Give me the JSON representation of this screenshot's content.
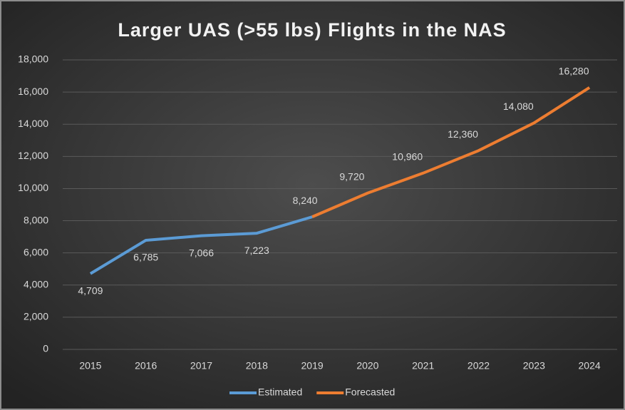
{
  "chart_data": {
    "type": "line",
    "title": "Larger UAS (>55 lbs) Flights in the NAS",
    "categories": [
      "2015",
      "2016",
      "2017",
      "2018",
      "2019",
      "2020",
      "2021",
      "2022",
      "2023",
      "2024"
    ],
    "series": [
      {
        "name": "Estimated",
        "color": "#5b9bd5",
        "values": [
          4709,
          6785,
          7066,
          7223,
          8240,
          null,
          null,
          null,
          null,
          null
        ],
        "value_labels": [
          "4,709",
          "6,785",
          "7,066",
          "7,223",
          "8,240",
          null,
          null,
          null,
          null,
          null
        ]
      },
      {
        "name": "Forecasted",
        "color": "#ed7d31",
        "values": [
          null,
          null,
          null,
          null,
          8240,
          9720,
          10960,
          12360,
          14080,
          16280
        ],
        "value_labels": [
          null,
          null,
          null,
          null,
          null,
          "9,720",
          "10,960",
          "12,360",
          "14,080",
          "16,280"
        ]
      }
    ],
    "ylim": [
      0,
      18000
    ],
    "yticks": [
      0,
      {
        "value": 2000,
        "label": "2,000"
      },
      {
        "value": 4000,
        "label": "4,000"
      },
      {
        "value": 6000,
        "label": "6,000"
      },
      {
        "value": 8000,
        "label": "8,000"
      },
      {
        "value": 10000,
        "label": "10,000"
      },
      {
        "value": 12000,
        "label": "12,000"
      },
      {
        "value": 14000,
        "label": "14,000"
      },
      {
        "value": 16000,
        "label": "16,000"
      },
      {
        "value": 18000,
        "label": "18,000"
      }
    ],
    "grid": true,
    "legend": "bottom"
  }
}
